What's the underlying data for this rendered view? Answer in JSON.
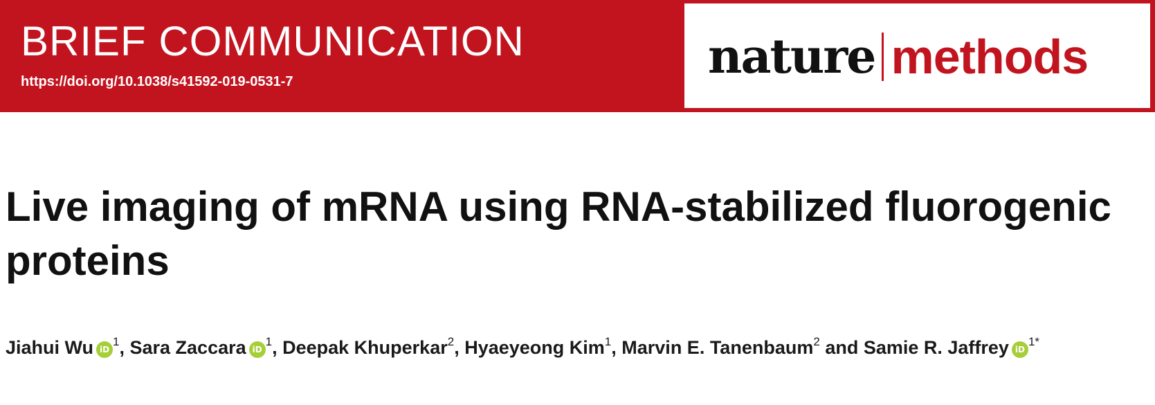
{
  "banner": {
    "article_type": "BRIEF COMMUNICATION",
    "doi": "https://doi.org/10.1038/s41592-019-0531-7",
    "bg_color": "#c2141f"
  },
  "journal": {
    "name_part1": "nature",
    "name_part2": "methods",
    "accent_color": "#c2141f"
  },
  "article": {
    "title": "Live imaging of mRNA using RNA-stabilized fluorogenic proteins"
  },
  "authors": [
    {
      "name": "Jiahui Wu",
      "orcid_icon": "orcid-icon",
      "orcid_text": "iD",
      "affil": "1",
      "sep": ", "
    },
    {
      "name": "Sara Zaccara",
      "orcid_icon": "orcid-icon",
      "orcid_text": "iD",
      "affil": "1",
      "sep": ", "
    },
    {
      "name": "Deepak Khuperkar",
      "affil": "2",
      "sep": ", "
    },
    {
      "name": "Hyaeyeong Kim",
      "affil": "1",
      "sep": ", "
    },
    {
      "name": "Marvin E. Tanenbaum",
      "affil": "2",
      "sep": " and "
    },
    {
      "name": "Samie R. Jaffrey",
      "orcid_icon": "orcid-icon",
      "orcid_text": "iD",
      "affil": "1*",
      "sep": ""
    }
  ]
}
